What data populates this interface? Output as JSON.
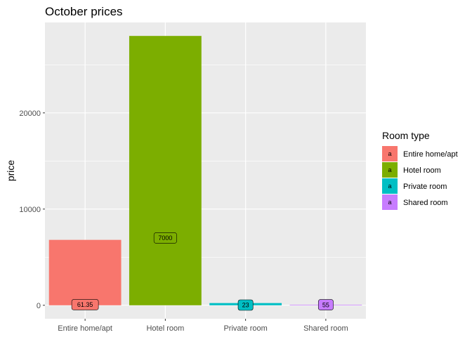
{
  "chart_data": {
    "type": "bar",
    "title": "October prices",
    "xlabel": "",
    "ylabel": "price",
    "categories": [
      "Entire home/apt",
      "Hotel room",
      "Private room",
      "Shared room"
    ],
    "values": [
      6800,
      28000,
      230,
      55
    ],
    "data_labels": [
      "61.35",
      "7000",
      "23",
      "55"
    ],
    "label_values": [
      61.35,
      7000,
      23,
      55
    ],
    "colors": [
      "#F8766D",
      "#7CAE00",
      "#00BFC4",
      "#C77CFF"
    ],
    "ylim": [
      -1400,
      29400
    ],
    "yticks": [
      0,
      10000,
      20000
    ],
    "ytick_labels": [
      "0",
      "10000",
      "20000"
    ],
    "grid": true,
    "legend": {
      "title": "Room type",
      "position": "right",
      "key_glyph": "a",
      "items": [
        "Entire home/apt",
        "Hotel room",
        "Private room",
        "Shared room"
      ]
    }
  }
}
